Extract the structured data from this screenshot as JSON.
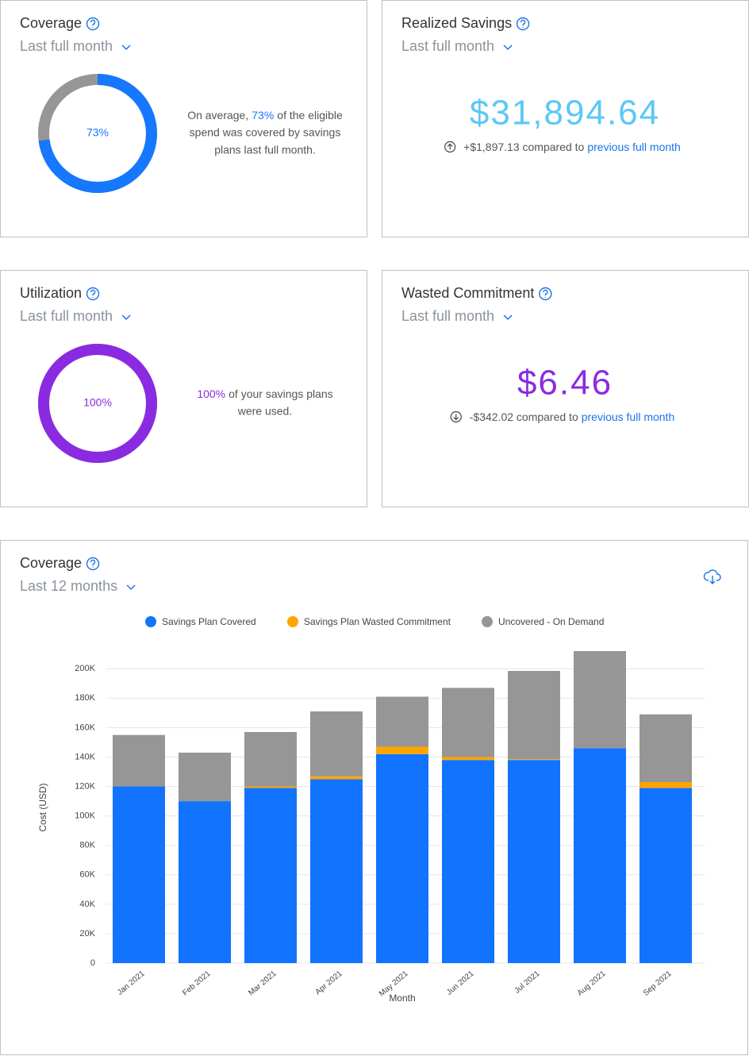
{
  "cards": [
    {
      "title": "Coverage",
      "period": "Last full month",
      "donut": {
        "value": 73,
        "label": "73%",
        "color": "#1677ff"
      },
      "text_start": "On average,",
      "text_highlight": "73%",
      "text_end": "of the eligible",
      "text_lines": [
        "spend was covered by savings",
        "plans last full month."
      ]
    },
    {
      "title": "Realized Savings",
      "period": "Last full month",
      "amount": "$31,894.64",
      "amount_color": "#5bc8f5",
      "change": "+$1,897.13 compared to",
      "link": "previous full month",
      "trend": "up"
    },
    {
      "title": "Utilization",
      "period": "Last full month",
      "donut": {
        "value": 100,
        "label": "100%",
        "color": "#8a2be2"
      },
      "text_start": "",
      "text_highlight": "100%",
      "text_end": "of your savings plans",
      "text_lines": [
        "were used."
      ]
    },
    {
      "title": "Wasted Commitment",
      "period": "Last full month",
      "amount": "$6.46",
      "amount_color": "#8a2be2",
      "change": "-$342.02 compared to",
      "link": "previous full month",
      "trend": "down"
    }
  ],
  "chart_data": {
    "type": "bar",
    "stacked": true,
    "title": "Coverage",
    "period": "Last 12 months",
    "x_label": "Month",
    "y_label": "Cost (USD)",
    "categories": [
      "Jan 2021",
      "Feb 2021",
      "Mar 2021",
      "Apr 2021",
      "May 2021",
      "Jun 2021",
      "Jul 2021",
      "Aug 2021",
      "Sep 2021"
    ],
    "series": [
      {
        "name": "Savings Plan Covered",
        "color": "#1273ff",
        "values": [
          120000,
          110000,
          119000,
          125000,
          142000,
          138000,
          138000,
          146000,
          119000
        ]
      },
      {
        "name": "Savings Plan Wasted Commitment",
        "color": "#ffa500",
        "values": [
          0,
          0,
          1000,
          2000,
          5000,
          2000,
          500,
          0,
          4000
        ]
      },
      {
        "name": "Uncovered - On Demand",
        "color": "#969696",
        "values": [
          35000,
          33000,
          37000,
          44000,
          34000,
          47000,
          60000,
          66000,
          46000
        ]
      }
    ],
    "ylim": [
      0,
      212000
    ],
    "yticks": [
      0,
      {
        "value": 20000,
        "label": "20K"
      },
      {
        "value": 40000,
        "label": "40K"
      },
      {
        "value": 60000,
        "label": "60K"
      },
      {
        "value": 80000,
        "label": "80K"
      },
      {
        "value": 100000,
        "label": "100K"
      },
      {
        "value": 120000,
        "label": "120K"
      },
      {
        "value": 140000,
        "label": "140K"
      },
      {
        "value": 160000,
        "label": "160K"
      },
      {
        "value": 180000,
        "label": "180K"
      },
      {
        "value": 200000,
        "label": "200K"
      }
    ],
    "grid": true,
    "legend": "top"
  }
}
